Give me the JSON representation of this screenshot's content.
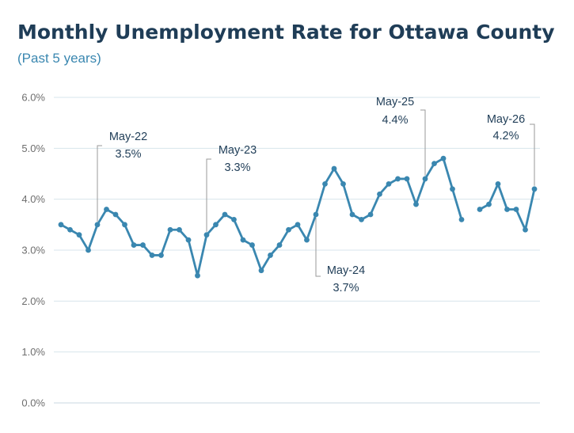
{
  "title": "Monthly Unemployment Rate for Ottawa County",
  "subtitle": "(Past 5 years)",
  "colors": {
    "title": "#1f3d57",
    "subtitle": "#3a87b0",
    "line": "#3a87b0",
    "grid": "#d7e4ec",
    "tick_text": "#6e6e6e",
    "annotation_text": "#1f3d57",
    "leader_line": "#9a9a9a"
  },
  "chart_data": {
    "type": "line",
    "ylim": [
      0,
      6
    ],
    "grid": true,
    "y_tick_labels": [
      "0.0%",
      "1.0%",
      "2.0%",
      "3.0%",
      "4.0%",
      "5.0%",
      "6.0%"
    ],
    "y_ticks": [
      0,
      1,
      2,
      3,
      4,
      5,
      6
    ],
    "series": [
      {
        "values": [
          3.5,
          3.4,
          3.3,
          3.0,
          3.5,
          3.8,
          3.7,
          3.5,
          3.1,
          3.1,
          2.9,
          2.9,
          3.4,
          3.4,
          3.2,
          2.5,
          3.3,
          3.5,
          3.7,
          3.6,
          3.2,
          3.1,
          2.6,
          2.9,
          3.1,
          3.4,
          3.5,
          3.2,
          3.7,
          4.3,
          4.6,
          4.3,
          3.7,
          3.6,
          3.7,
          4.1,
          4.3,
          4.4,
          4.4,
          3.9,
          4.4,
          4.7,
          4.8,
          4.2,
          3.6,
          null,
          3.8,
          3.9,
          4.3,
          3.8,
          3.8,
          3.4,
          4.2
        ]
      }
    ],
    "annotations": [
      {
        "index": 4,
        "label": "May-22",
        "value_label": "3.5%",
        "placement": "above"
      },
      {
        "index": 16,
        "label": "May-23",
        "value_label": "3.3%",
        "placement": "above"
      },
      {
        "index": 28,
        "label": "May-24",
        "value_label": "3.7%",
        "placement": "below"
      },
      {
        "index": 40,
        "label": "May-25",
        "value_label": "4.4%",
        "placement": "above"
      },
      {
        "index": 52,
        "label": "May-26",
        "value_label": "4.2%",
        "placement": "above"
      }
    ]
  }
}
